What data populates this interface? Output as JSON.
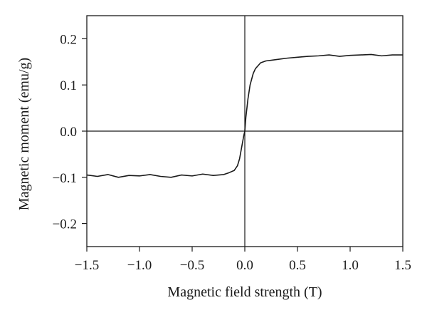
{
  "chart_data": {
    "type": "line",
    "title": "",
    "xlabel": "Magnetic field strength (T)",
    "ylabel": "Magnetic moment (emu/g)",
    "xlim": [
      -1.5,
      1.5
    ],
    "ylim": [
      -0.25,
      0.25
    ],
    "x_ticks": [
      -1.5,
      -1.0,
      -0.5,
      0.0,
      0.5,
      1.0,
      1.5
    ],
    "x_tick_labels": [
      "−1.5",
      "−1.0",
      "−0.5",
      "0.0",
      "0.5",
      "1.0",
      "1.5"
    ],
    "y_ticks": [
      0.2,
      0.1,
      0.0,
      -0.1,
      -0.2
    ],
    "y_tick_labels": [
      "0.2",
      "0.1",
      "0.0",
      "−0.1",
      "−0.2"
    ],
    "reference_lines": {
      "x0": 0.0,
      "y0": 0.0
    },
    "grid": false,
    "legend": "none",
    "line_color": "#1a1a1a",
    "series": [
      {
        "x": [
          -1.5,
          -1.4,
          -1.3,
          -1.2,
          -1.1,
          -1.0,
          -0.9,
          -0.8,
          -0.7,
          -0.6,
          -0.5,
          -0.4,
          -0.3,
          -0.2,
          -0.15,
          -0.1,
          -0.07,
          -0.05,
          -0.03,
          -0.01,
          0.0,
          0.01,
          0.03,
          0.05,
          0.08,
          0.1,
          0.15,
          0.2,
          0.3,
          0.4,
          0.5,
          0.6,
          0.7,
          0.8,
          0.9,
          1.0,
          1.1,
          1.2,
          1.3,
          1.4,
          1.5
        ],
        "y": [
          -0.095,
          -0.098,
          -0.094,
          -0.1,
          -0.096,
          -0.097,
          -0.094,
          -0.098,
          -0.1,
          -0.095,
          -0.097,
          -0.093,
          -0.096,
          -0.094,
          -0.09,
          -0.085,
          -0.075,
          -0.06,
          -0.035,
          -0.01,
          0.0,
          0.03,
          0.07,
          0.1,
          0.125,
          0.135,
          0.148,
          0.152,
          0.155,
          0.158,
          0.16,
          0.162,
          0.163,
          0.165,
          0.162,
          0.164,
          0.165,
          0.166,
          0.163,
          0.165,
          0.165
        ]
      }
    ]
  }
}
